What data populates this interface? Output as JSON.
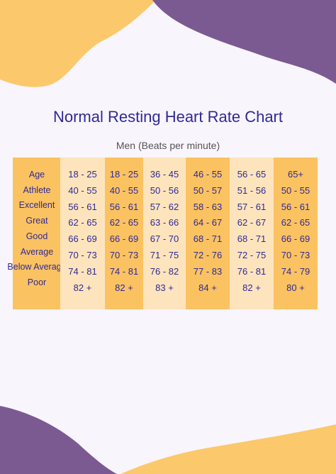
{
  "header": {
    "title": "Normal Resting Heart Rate Chart",
    "subtitle": "Men (Beats per minute)"
  },
  "table": {
    "row_labels": [
      "Age",
      "Athlete",
      "Excellent",
      "Great",
      "Good",
      "Average",
      "Below Average",
      "Poor"
    ],
    "columns": [
      [
        "18 - 25",
        "40 - 55",
        "56 - 61",
        "62 - 65",
        "66 - 69",
        "70 - 73",
        "74 - 81",
        "82 +"
      ],
      [
        "18 - 25",
        "40 - 55",
        "56 - 61",
        "62 - 65",
        "66 - 69",
        "70 - 73",
        "74 - 81",
        "82 +"
      ],
      [
        "36 - 45",
        "50 - 56",
        "57 - 62",
        "63 - 66",
        "67 - 70",
        "71 - 75",
        "76 - 82",
        "83 +"
      ],
      [
        "46 - 55",
        "50 - 57",
        "58 - 63",
        "64 - 67",
        "68 - 71",
        "72 - 76",
        "77 - 83",
        "84 +"
      ],
      [
        "56 - 65",
        "51 - 56",
        "57 - 61",
        "62 - 67",
        "68 - 71",
        "72 - 75",
        "76 - 81",
        "82 +"
      ],
      [
        "65+",
        "50 - 55",
        "56 - 61",
        "62 - 65",
        "66 - 69",
        "70 - 73",
        "74 - 79",
        "80 +"
      ]
    ]
  }
}
